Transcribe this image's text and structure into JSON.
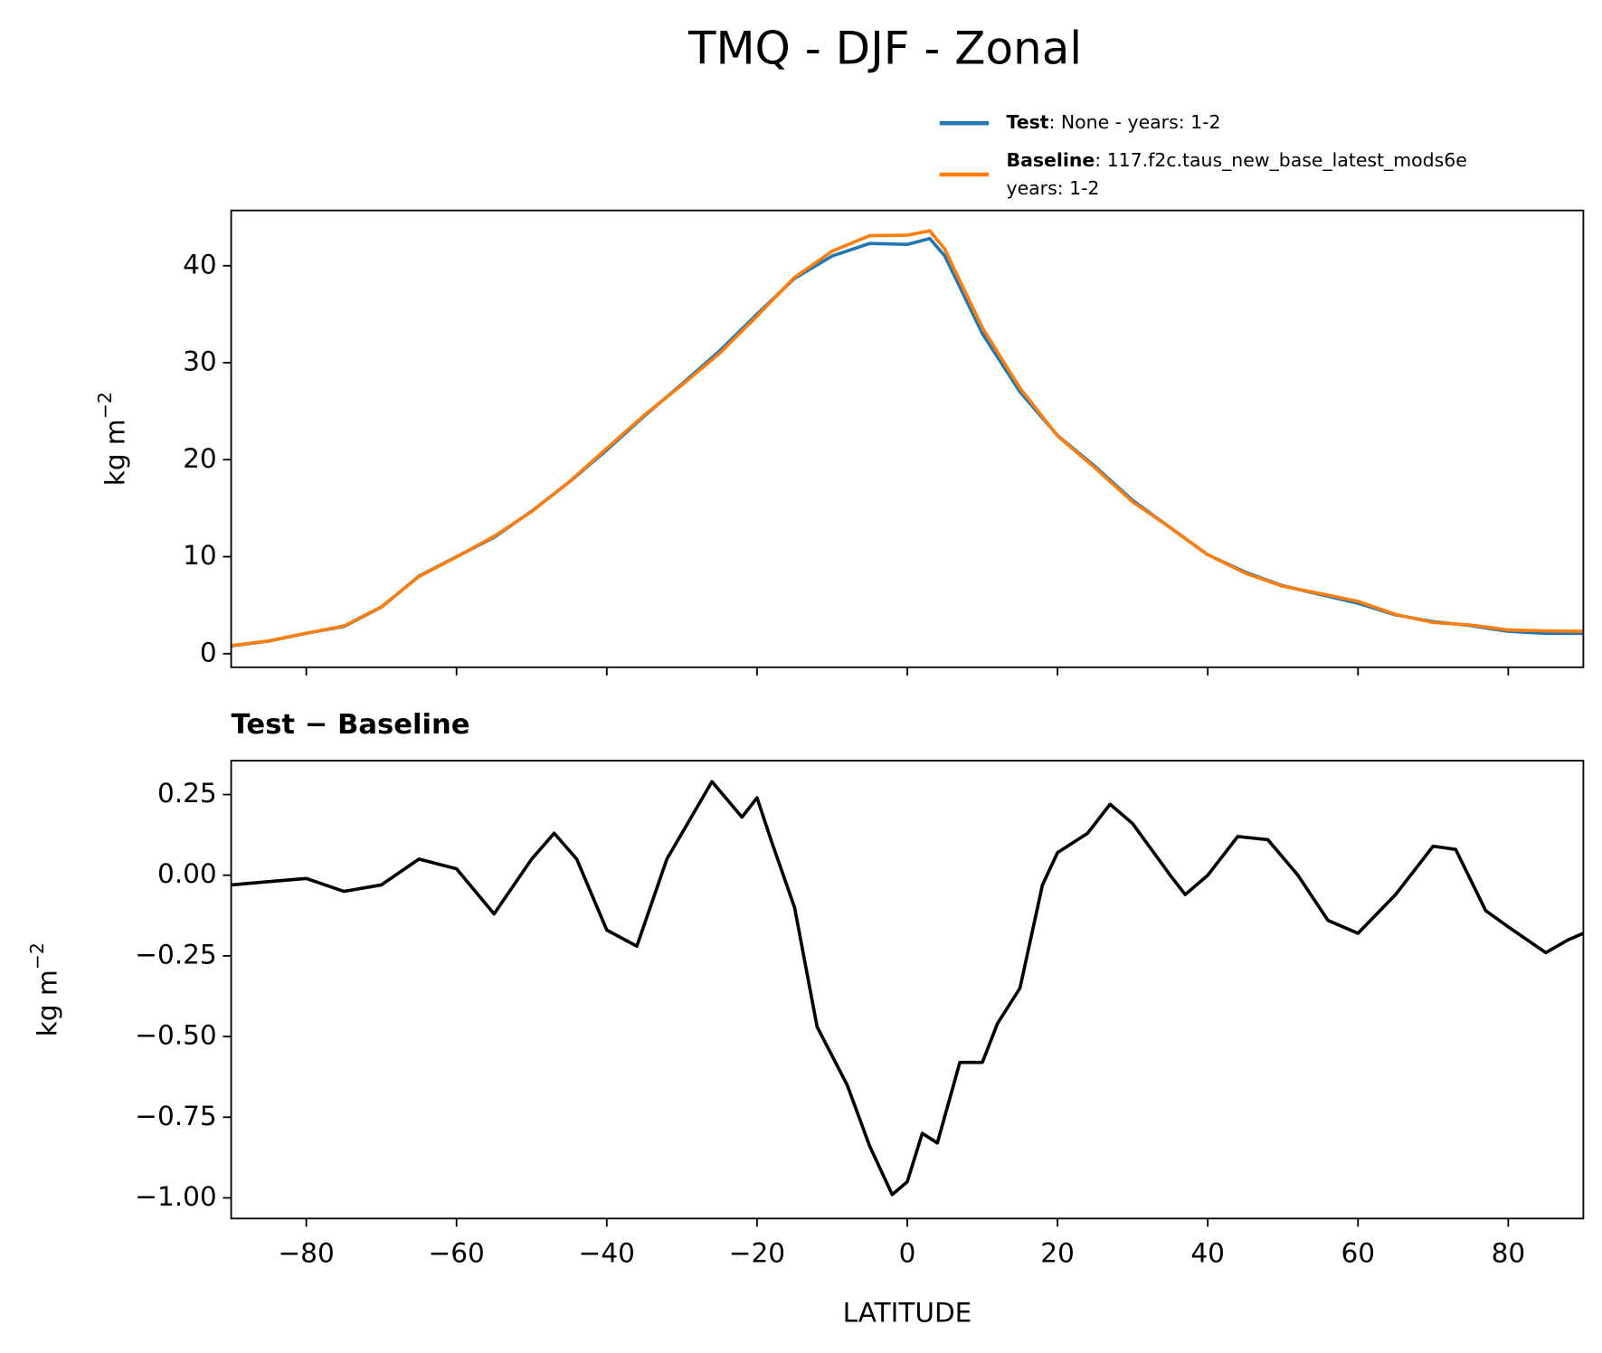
{
  "title": "TMQ - DJF - Zonal",
  "chart_data": [
    {
      "type": "line",
      "ylabel": "kg m",
      "ylabel_exponent": "−2",
      "x": [
        -90,
        -85,
        -80,
        -75,
        -70,
        -65,
        -60,
        -55,
        -50,
        -45,
        -40,
        -35,
        -30,
        -25,
        -20,
        -15,
        -10,
        -5,
        0,
        3,
        5,
        10,
        15,
        20,
        25,
        30,
        35,
        40,
        45,
        50,
        55,
        60,
        65,
        70,
        75,
        80,
        85,
        90
      ],
      "series": [
        {
          "name": "Test",
          "description": [
            ": None - years: 1-2"
          ],
          "color": "#1f77b4",
          "values": [
            0.8,
            1.3,
            2.1,
            2.8,
            4.8,
            8,
            10,
            12,
            14.7,
            17.7,
            21,
            24.5,
            27.8,
            31.2,
            35,
            38.7,
            41,
            42.3,
            42.2,
            42.8,
            41,
            33,
            27,
            22.5,
            19.3,
            15.8,
            13,
            10.2,
            8.4,
            7,
            6.1,
            5.2,
            4,
            3.3,
            2.9,
            2.3,
            2.1,
            2.1
          ]
        },
        {
          "name": "Baseline",
          "description": [
            ": 117.f2c.taus_new_base_latest_mods6e",
            "years: 1-2"
          ],
          "color": "#ff7f0e",
          "values": [
            0.83,
            1.32,
            2.11,
            2.85,
            4.83,
            7.95,
            9.98,
            12.1,
            14.65,
            17.72,
            21.17,
            24.6,
            27.7,
            30.95,
            34.8,
            38.8,
            41.5,
            43.1,
            43.15,
            43.6,
            41.7,
            33.6,
            27.4,
            22.45,
            19.15,
            15.65,
            13,
            10.2,
            8.3,
            6.95,
            6.2,
            5.4,
            4.05,
            3.22,
            2.95,
            2.45,
            2.35,
            2.3
          ]
        }
      ],
      "xlim": [
        -90,
        90
      ],
      "xticks": [
        -80,
        -60,
        -40,
        -20,
        0,
        20,
        40,
        60,
        80
      ],
      "show_xticklabels": false,
      "ylim": [
        -1.4,
        45.7
      ],
      "yticks": [
        0,
        10,
        20,
        30,
        40
      ],
      "legend": "upper right outside"
    },
    {
      "type": "line",
      "title": "Test − Baseline",
      "xlabel": "LATITUDE",
      "ylabel": "kg m",
      "ylabel_exponent": "−2",
      "x": [
        -90,
        -85,
        -80,
        -75,
        -70,
        -65,
        -60,
        -55,
        -50,
        -47,
        -44,
        -40,
        -36,
        -32,
        -26,
        -22,
        -20,
        -18,
        -15,
        -12,
        -8,
        -5,
        -2,
        0,
        2,
        4,
        7,
        10,
        12,
        15,
        18,
        20,
        24,
        27,
        30,
        35,
        37,
        40,
        44,
        48,
        52,
        56,
        60,
        65,
        70,
        73,
        77,
        80,
        85,
        88,
        90
      ],
      "series": [
        {
          "name": "Test − Baseline",
          "color": "#000000",
          "values": [
            -0.03,
            -0.02,
            -0.01,
            -0.05,
            -0.03,
            0.05,
            0.02,
            -0.12,
            0.05,
            0.13,
            0.05,
            -0.17,
            -0.22,
            0.05,
            0.29,
            0.18,
            0.24,
            0.1,
            -0.1,
            -0.47,
            -0.65,
            -0.84,
            -0.99,
            -0.95,
            -0.8,
            -0.83,
            -0.58,
            -0.58,
            -0.46,
            -0.35,
            -0.03,
            0.07,
            0.13,
            0.22,
            0.16,
            0,
            -0.06,
            0,
            0.12,
            0.11,
            0,
            -0.14,
            -0.18,
            -0.06,
            0.09,
            0.08,
            -0.11,
            -0.16,
            -0.24,
            -0.2,
            -0.18
          ]
        }
      ],
      "xlim": [
        -90,
        90
      ],
      "xticks": [
        {
          "value": -80,
          "label": "−80"
        },
        {
          "value": -60,
          "label": "−60"
        },
        {
          "value": -40,
          "label": "−40"
        },
        {
          "value": -20,
          "label": "−20"
        },
        0,
        20,
        40,
        60,
        80
      ],
      "show_xticklabels": true,
      "ylim": [
        -1.064,
        0.355
      ],
      "yticks": [
        {
          "value": 0.25,
          "label": "0.25"
        },
        {
          "value": 0,
          "label": "0.00"
        },
        {
          "value": -0.25,
          "label": "−0.25"
        },
        {
          "value": -0.5,
          "label": "−0.50"
        },
        {
          "value": -0.75,
          "label": "−0.75"
        },
        {
          "value": -1,
          "label": "−1.00"
        }
      ]
    }
  ]
}
